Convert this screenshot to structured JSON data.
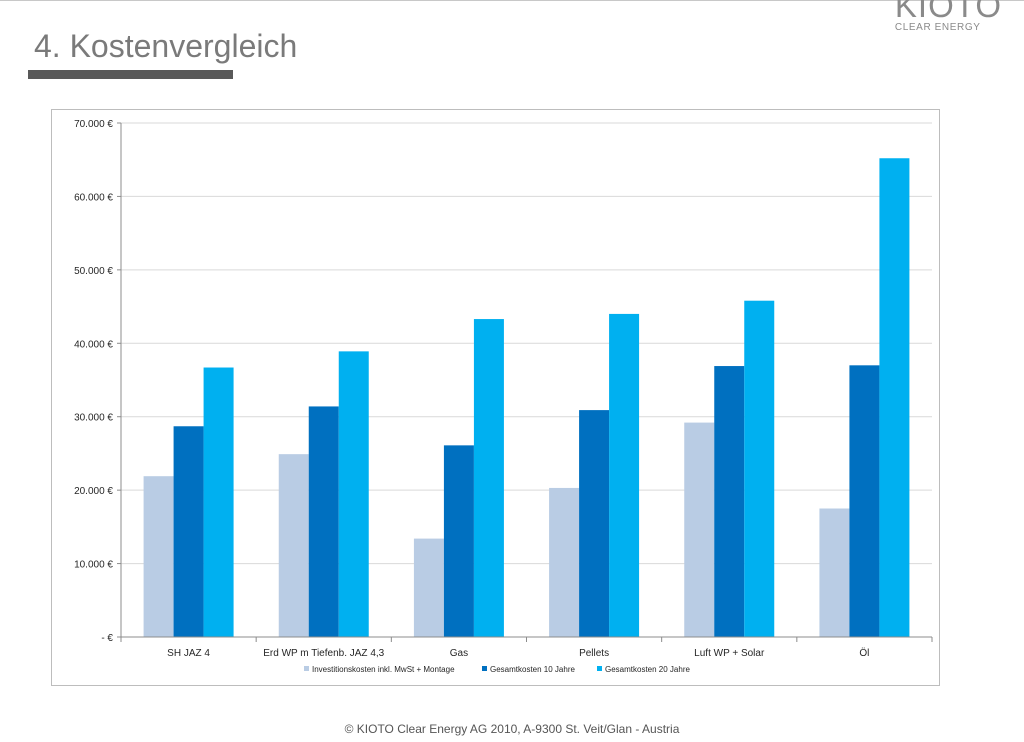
{
  "page": {
    "title": "4. Kostenvergleich",
    "logo_main": "KIOTO",
    "logo_sub": "CLEAR ENERGY",
    "footer": "© KIOTO Clear Energy AG 2010, A-9300 St. Veit/Glan - Austria"
  },
  "chart_data": {
    "type": "bar",
    "title": "",
    "xlabel": "",
    "ylabel": "",
    "categories": [
      "SH JAZ 4",
      "Erd WP m Tiefenb. JAZ 4,3",
      "Gas",
      "Pellets",
      "Luft WP + Solar",
      "Öl"
    ],
    "series": [
      {
        "name": "Investitionskosten inkl. MwSt + Montage",
        "color": "#b9cce4",
        "values": [
          21900,
          24900,
          13400,
          20300,
          29200,
          17500
        ]
      },
      {
        "name": "Gesamtkosten 10 Jahre",
        "color": "#0070c0",
        "values": [
          28700,
          31400,
          26100,
          30900,
          36900,
          37000
        ]
      },
      {
        "name": "Gesamtkosten 20 Jahre",
        "color": "#00b0f0",
        "values": [
          36700,
          38900,
          43300,
          44000,
          45800,
          65200
        ]
      }
    ],
    "ylim": [
      0,
      70000
    ],
    "yticks": [
      0,
      10000,
      20000,
      30000,
      40000,
      50000,
      60000,
      70000
    ],
    "ytick_labels": [
      "-   €",
      "10.000 €",
      "20.000 €",
      "30.000 €",
      "40.000 €",
      "50.000 €",
      "60.000 €",
      "70.000 €"
    ],
    "grid": true,
    "legend_position": "bottom"
  }
}
